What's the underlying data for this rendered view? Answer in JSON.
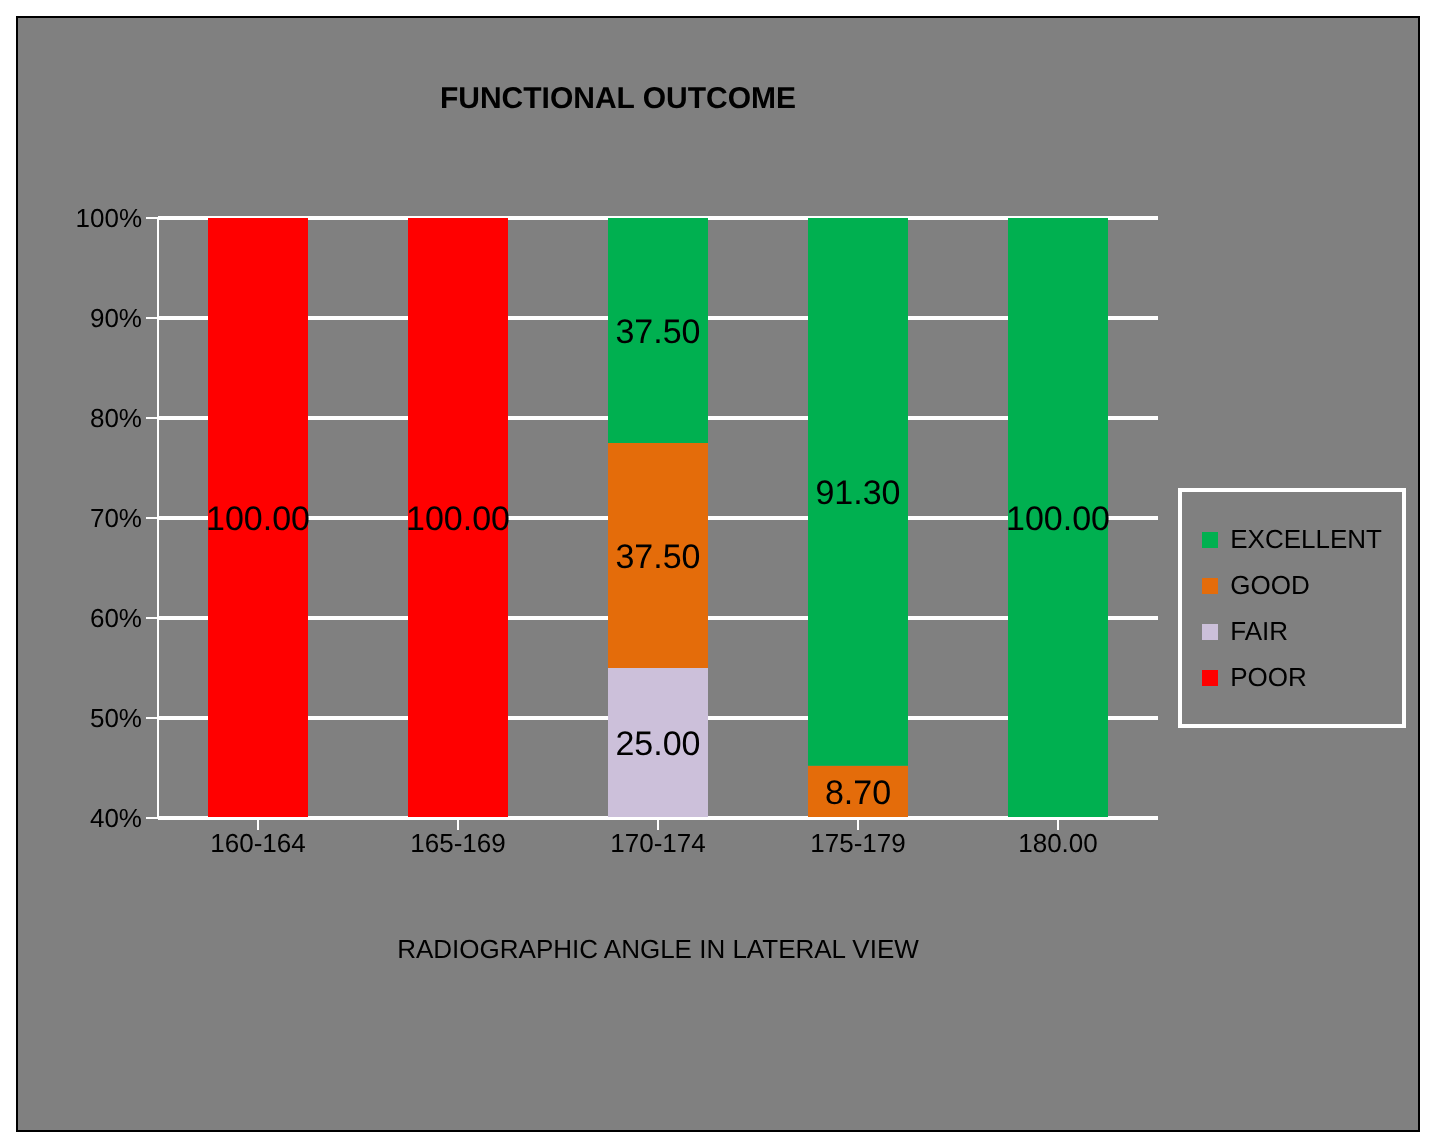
{
  "chart_data": {
    "type": "bar",
    "title": "FUNCTIONAL OUTCOME",
    "xlabel": "RADIOGRAPHIC ANGLE IN LATERAL VIEW",
    "categories": [
      "160-164",
      "165-169",
      "170-174",
      "175-179",
      "180.00"
    ],
    "stacked": true,
    "series": [
      {
        "name": "POOR",
        "color": "#ff0000",
        "axis": "y2",
        "values": [
          100,
          100,
          null,
          null,
          null
        ],
        "value_labels": [
          "100.00",
          "100.00",
          null,
          null,
          null
        ]
      },
      {
        "name": "FAIR",
        "color": "#ccc0da",
        "axis": "y2",
        "values": [
          null,
          null,
          25,
          null,
          null
        ],
        "value_labels": [
          null,
          null,
          "25.00",
          null,
          null
        ]
      },
      {
        "name": "GOOD",
        "color": "#e46c0a",
        "axis": "y2",
        "values": [
          null,
          null,
          37.5,
          8.7,
          null
        ],
        "value_labels": [
          null,
          null,
          "37.50",
          "8.70",
          null
        ]
      },
      {
        "name": "EXCELLENT",
        "color": "#00b050",
        "axis": "y2",
        "values": [
          null,
          null,
          37.5,
          91.3,
          100
        ],
        "value_labels": [
          null,
          null,
          "37.50",
          "91.30",
          "100.00"
        ]
      }
    ],
    "ylim": [
      40,
      100
    ],
    "yticks": [
      {
        "value": 40,
        "label": "40%"
      },
      {
        "value": 50,
        "label": "50%"
      },
      {
        "value": 60,
        "label": "60%"
      },
      {
        "value": 70,
        "label": "70%"
      },
      {
        "value": 80,
        "label": "80%"
      },
      {
        "value": 90,
        "label": "90%"
      },
      {
        "value": 100,
        "label": "100%"
      }
    ],
    "y2lim": [
      0,
      100
    ],
    "grid": "y",
    "legend": "right"
  }
}
